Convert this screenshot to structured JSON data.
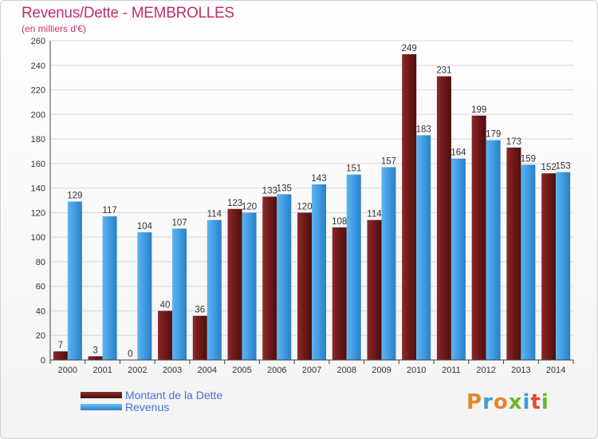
{
  "header": {
    "title": "Revenus/Dette - MEMBROLLES",
    "subtitle": "(en milliers d'€)"
  },
  "legend": {
    "items": [
      {
        "label": "Montant de la Dette",
        "color": "#6b1a1a"
      },
      {
        "label": "Revenus",
        "color": "#3d9be0"
      }
    ]
  },
  "logo": {
    "text": "Proxiti",
    "letter_colors": [
      "#e8862a",
      "#3d9be0",
      "#e8862a",
      "#6bb82e",
      "#3d9be0",
      "#e84a2a",
      "#6bb82e"
    ]
  },
  "chart_data": {
    "type": "bar",
    "categories": [
      "2000",
      "2001",
      "2002",
      "2003",
      "2004",
      "2005",
      "2006",
      "2007",
      "2008",
      "2009",
      "2010",
      "2011",
      "2012",
      "2013",
      "2014"
    ],
    "series": [
      {
        "name": "Montant de la Dette",
        "color": "#7a1f1f",
        "values": [
          7,
          3,
          0,
          40,
          36,
          123,
          133,
          120,
          108,
          114,
          249,
          231,
          199,
          173,
          152
        ]
      },
      {
        "name": "Revenus",
        "color": "#4aa6e8",
        "values": [
          129,
          117,
          104,
          107,
          114,
          120,
          135,
          143,
          151,
          157,
          183,
          164,
          179,
          159,
          153
        ]
      }
    ],
    "ylim": [
      0,
      260
    ],
    "yticks": [
      0,
      20,
      40,
      60,
      80,
      100,
      120,
      140,
      160,
      180,
      200,
      220,
      240,
      260
    ],
    "grid": true
  }
}
